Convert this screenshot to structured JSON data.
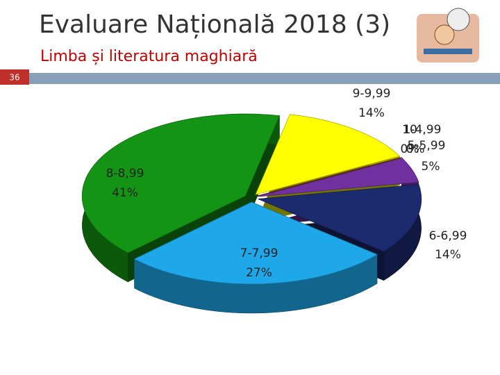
{
  "slide_number": "36",
  "chart_data": {
    "type": "pie",
    "title": "Evaluare Națională 2018 (3)",
    "subtitle": "Limba și literatura maghiară",
    "categories": [
      "1-4,99",
      "5-5,99",
      "6-6,99",
      "7-7,99",
      "8-8,99",
      "9-9,99",
      "10"
    ],
    "values": [
      0,
      5,
      14,
      27,
      41,
      14,
      0
    ],
    "value_labels": [
      "0%",
      "5%",
      "14%",
      "27%",
      "41%",
      "14%",
      "0%"
    ],
    "colors": [
      "#c00000",
      "#7030a0",
      "#1c2a6e",
      "#1ea8ea",
      "#149414",
      "#ffff00",
      "#800000"
    ]
  }
}
